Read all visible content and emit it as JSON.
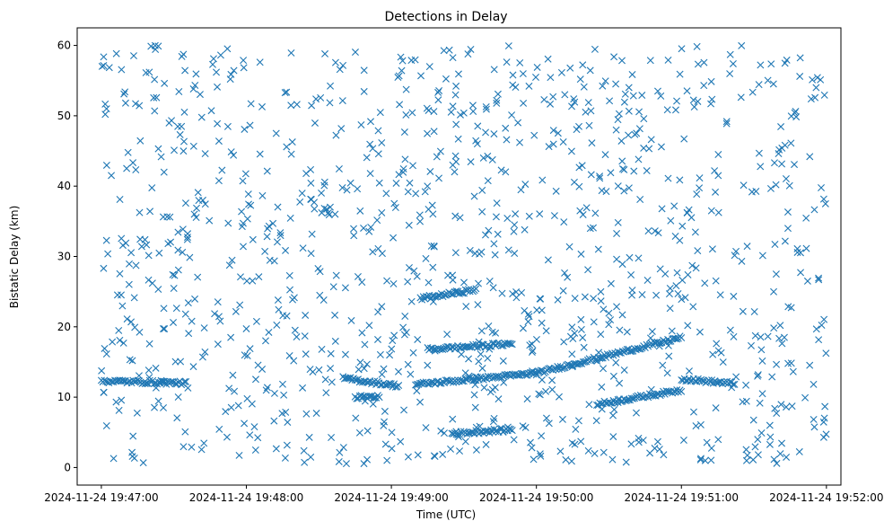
{
  "chart_data": {
    "type": "scatter",
    "title": "Detections in Delay",
    "xlabel": "Time (UTC)",
    "ylabel": "Bistatic Delay (km)",
    "marker": "x",
    "color": "#1f77b4",
    "grid": false,
    "legend": "none",
    "x_unit": "time",
    "xlim": [
      "2024-11-24 19:46:50",
      "2024-11-24 19:52:06"
    ],
    "ylim": [
      -2.5,
      62.5
    ],
    "xticks": [
      "2024-11-24 19:47:00",
      "2024-11-24 19:48:00",
      "2024-11-24 19:49:00",
      "2024-11-24 19:50:00",
      "2024-11-24 19:51:00",
      "2024-11-24 19:52:00"
    ],
    "yticks": [
      0,
      10,
      20,
      30,
      40,
      50,
      60
    ],
    "tracks": [
      {
        "from": "2024-11-24 19:47:00",
        "to": "2024-11-24 19:47:35",
        "delay_start": 12.3,
        "delay_end": 12.0
      },
      {
        "from": "2024-11-24 19:48:40",
        "to": "2024-11-24 19:49:03",
        "delay_start": 12.7,
        "delay_end": 11.6
      },
      {
        "from": "2024-11-24 19:49:10",
        "to": "2024-11-24 19:50:00",
        "delay_start": 11.8,
        "delay_end": 13.4
      },
      {
        "from": "2024-11-24 19:50:00",
        "to": "2024-11-24 19:51:00",
        "delay_start": 13.4,
        "delay_end": 18.5
      },
      {
        "from": "2024-11-24 19:49:12",
        "to": "2024-11-24 19:49:35",
        "delay_start": 24.0,
        "delay_end": 25.3
      },
      {
        "from": "2024-11-24 19:49:15",
        "to": "2024-11-24 19:49:50",
        "delay_start": 16.8,
        "delay_end": 17.6
      },
      {
        "from": "2024-11-24 19:49:25",
        "to": "2024-11-24 19:49:50",
        "delay_start": 4.8,
        "delay_end": 5.4
      },
      {
        "from": "2024-11-24 19:50:25",
        "to": "2024-11-24 19:51:00",
        "delay_start": 9.0,
        "delay_end": 11.0
      },
      {
        "from": "2024-11-24 19:51:00",
        "to": "2024-11-24 19:51:22",
        "delay_start": 12.6,
        "delay_end": 11.9
      },
      {
        "from": "2024-11-24 19:48:45",
        "to": "2024-11-24 19:48:55",
        "delay_start": 10.0,
        "delay_end": 10.0
      }
    ],
    "clutter": {
      "count": 1100,
      "delay_range": [
        0.5,
        60
      ],
      "from": "2024-11-24 19:47:00",
      "to": "2024-11-24 19:52:00"
    }
  }
}
